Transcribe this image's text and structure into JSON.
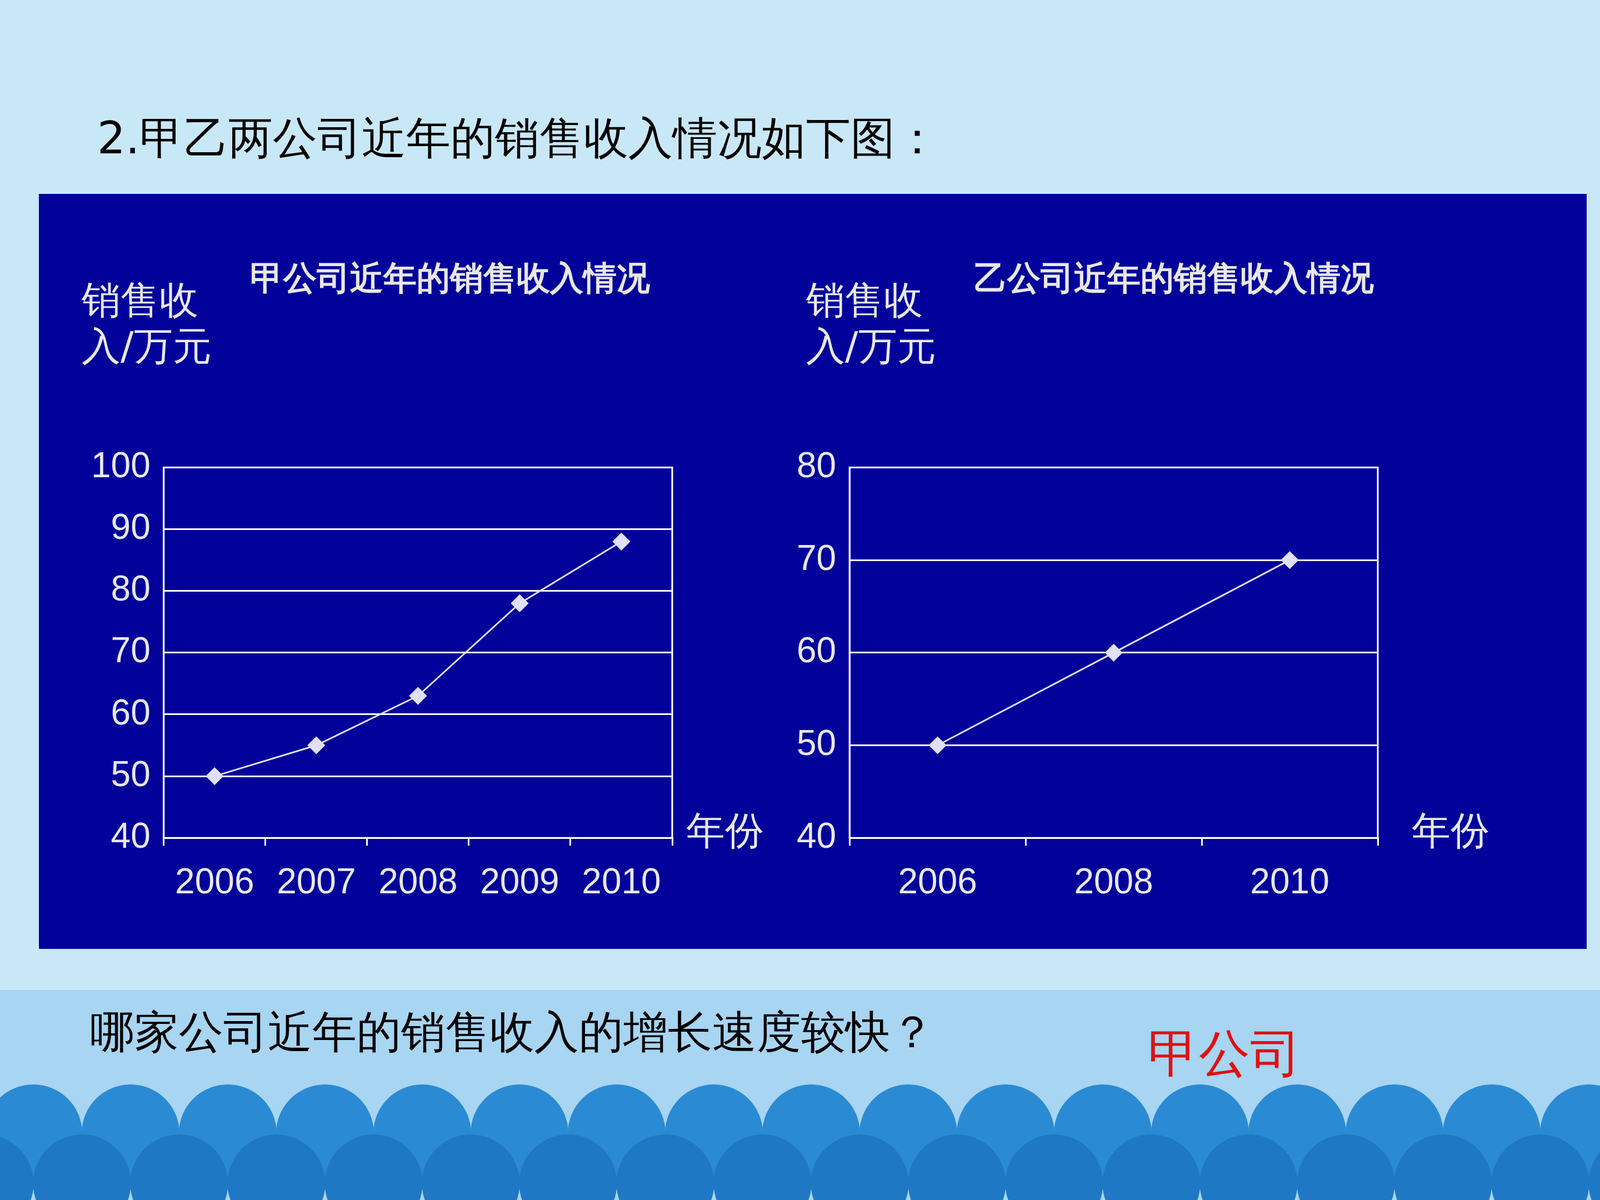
{
  "heading": "2.甲乙两公司近年的销售收入情况如下图：",
  "question": "哪家公司近年的销售收入的增长速度较快？",
  "answer": "甲公司",
  "chart_data": [
    {
      "type": "line",
      "title": "甲公司近年的销售收入情况",
      "y_label": "销售收入/万元",
      "x_label": "年份",
      "categories": [
        "2006",
        "2007",
        "2008",
        "2009",
        "2010"
      ],
      "values": [
        50,
        55,
        63,
        78,
        88
      ],
      "color": "#e0e0f8",
      "marker": "diamond",
      "line_style": "solid",
      "ylim": [
        40,
        100
      ],
      "yticks": [
        40,
        50,
        60,
        70,
        80,
        90,
        100
      ],
      "grid": true
    },
    {
      "type": "line",
      "title": "乙公司近年的销售收入情况",
      "y_label": "销售收入/万元",
      "x_label": "年份",
      "categories": [
        "2006",
        "2008",
        "2010"
      ],
      "values": [
        50,
        60,
        70
      ],
      "color": "#e0e0f8",
      "marker": "diamond",
      "line_style": "solid",
      "ylim": [
        40,
        80
      ],
      "yticks": [
        40,
        50,
        60,
        70,
        80
      ],
      "grid": true
    }
  ]
}
